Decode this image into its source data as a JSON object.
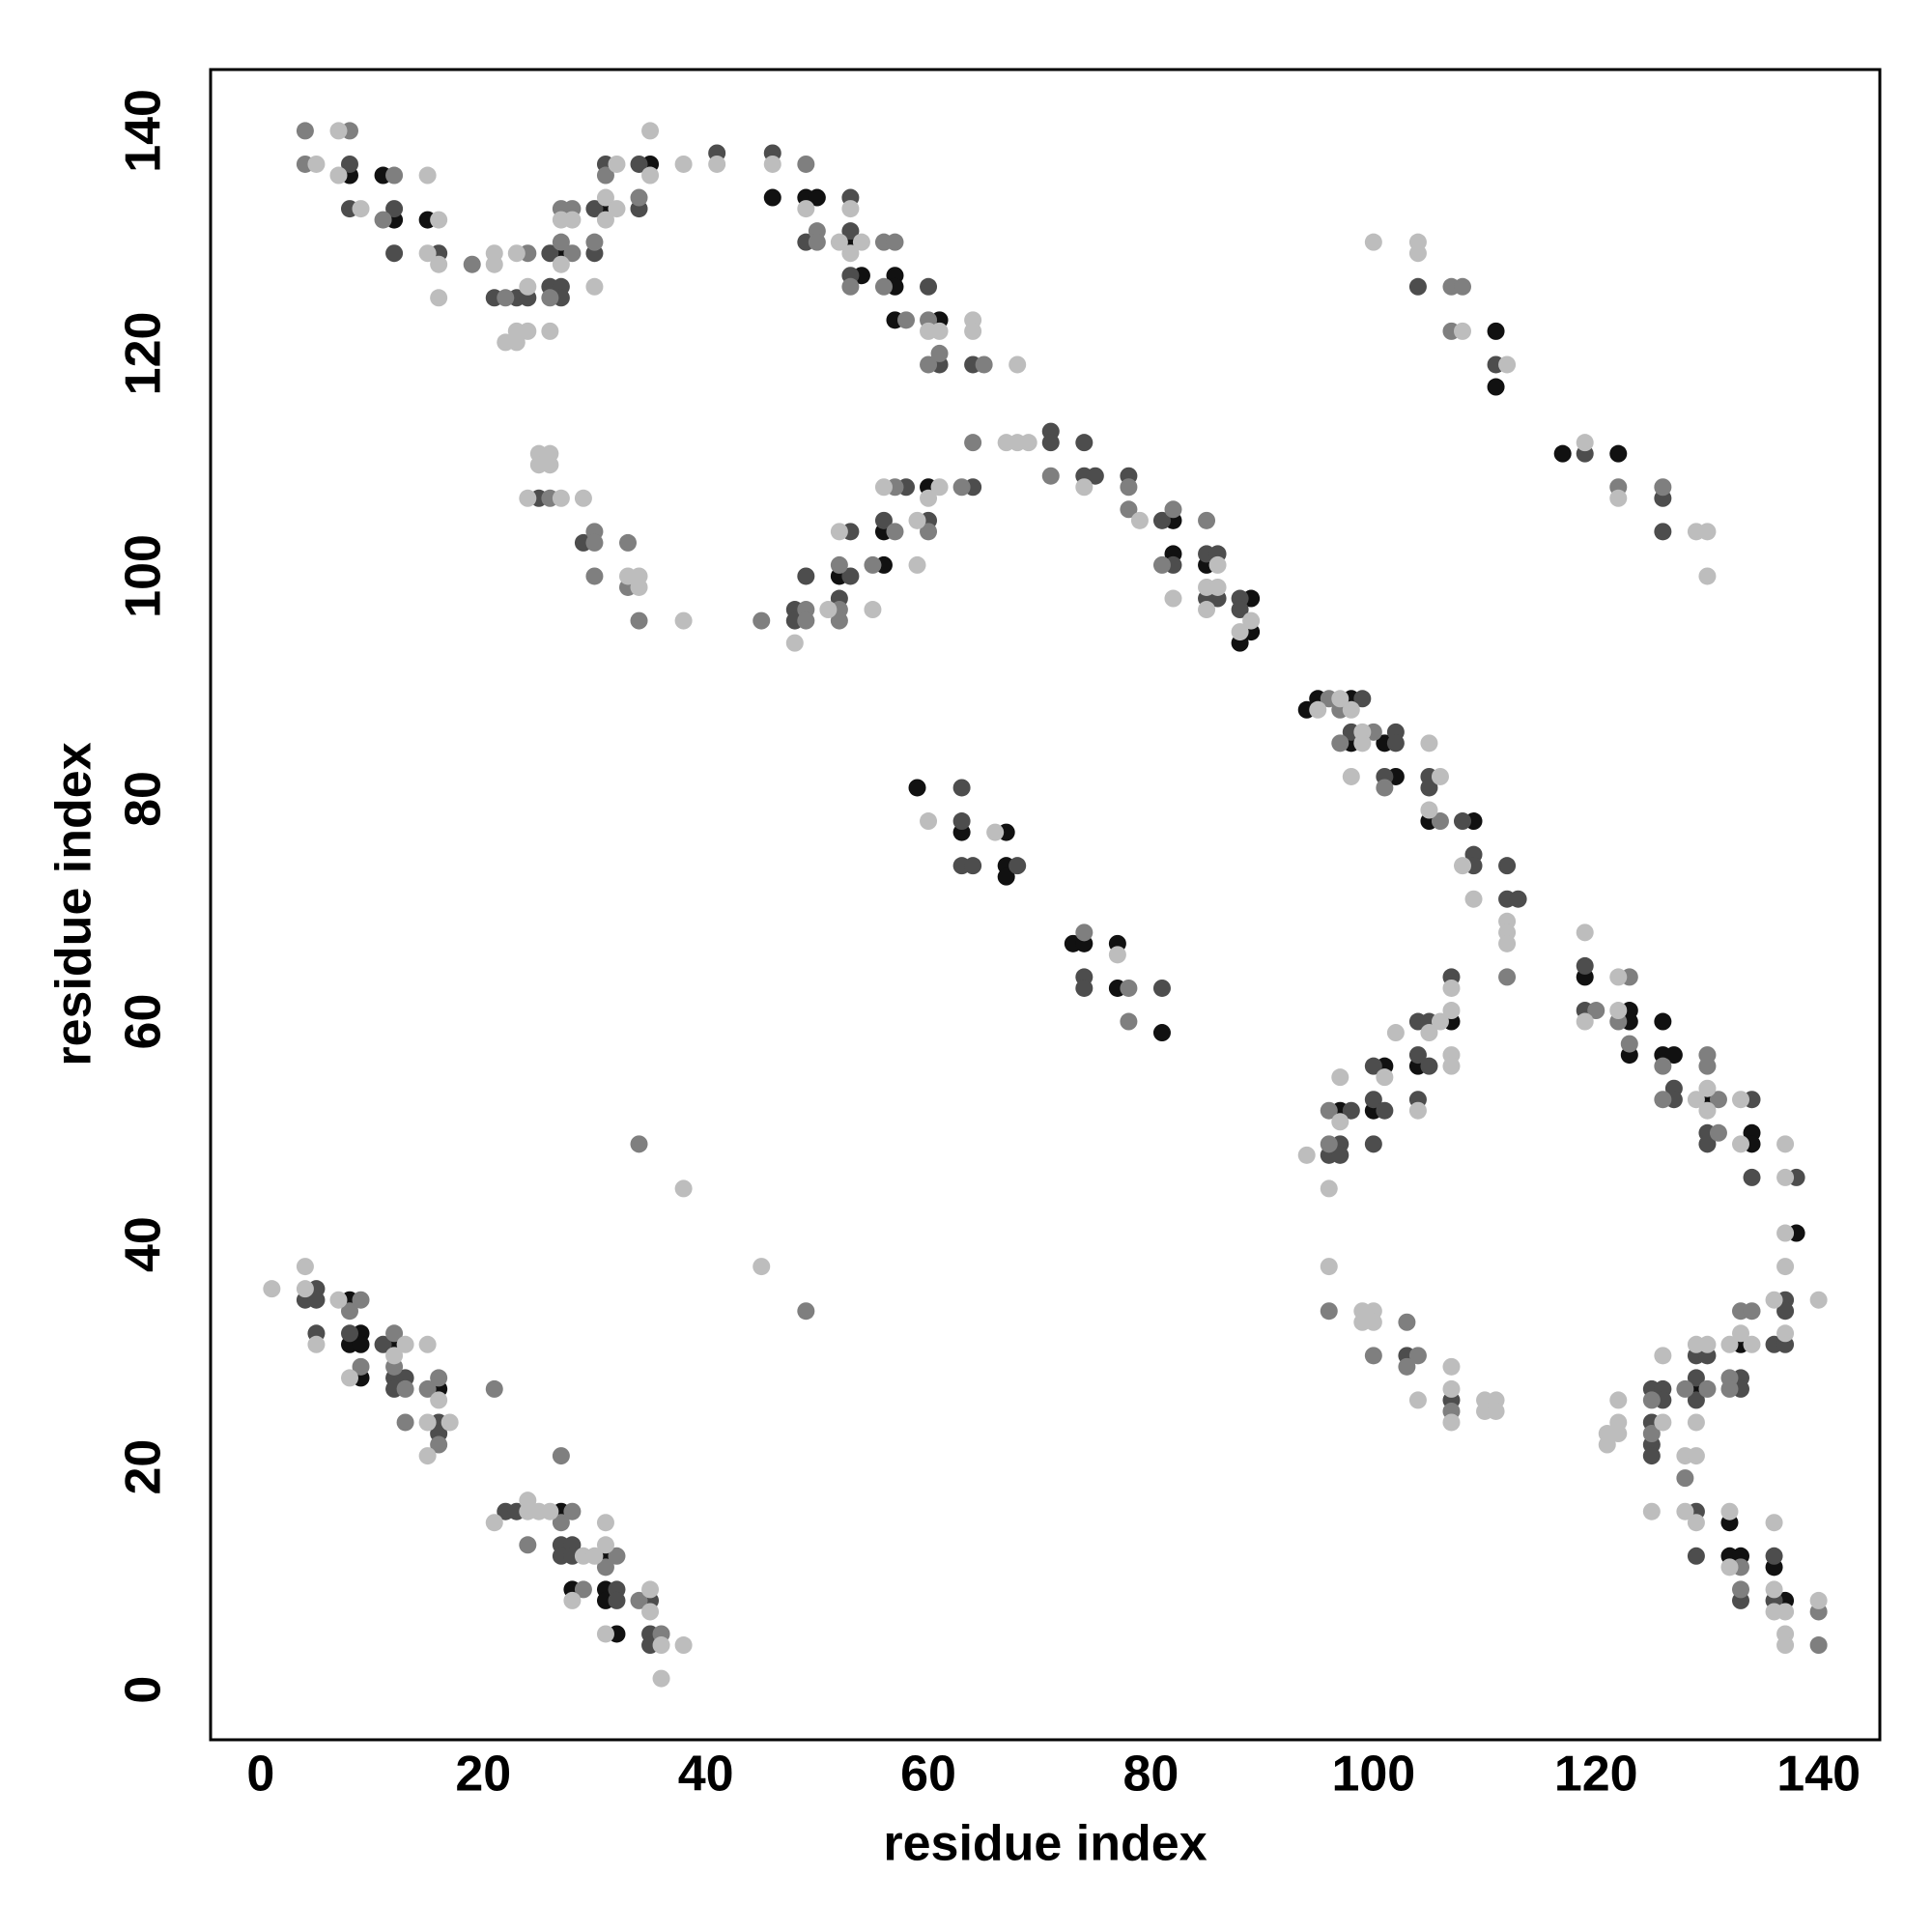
{
  "chart_data": {
    "type": "scatter",
    "xlabel": "residue index",
    "ylabel": "residue index",
    "xlim": [
      -4.5,
      145.5
    ],
    "ylim": [
      -4.5,
      145.5
    ],
    "xticks": [
      0,
      20,
      40,
      60,
      80,
      100,
      120,
      140
    ],
    "yticks": [
      0,
      20,
      40,
      60,
      80,
      100,
      120,
      140
    ],
    "series": [
      {
        "color": "#111111",
        "x": [
          8,
          11,
          12,
          15,
          27,
          31,
          35,
          46,
          49,
          50,
          53,
          54,
          57,
          57,
          57,
          61,
          111,
          111,
          117,
          122,
          52,
          56,
          56,
          60,
          82,
          82,
          85,
          89,
          88,
          89,
          94,
          95,
          98,
          98,
          101,
          102,
          105,
          109,
          59,
          63,
          67,
          67,
          67,
          73,
          74,
          77,
          77,
          81,
          107,
          104,
          101,
          100,
          97,
          119,
          123,
          123,
          123,
          126,
          126,
          127,
          130,
          134,
          134,
          138,
          133,
          129,
          132,
          132,
          133,
          136,
          137,
          8,
          9,
          8,
          9,
          9,
          12,
          16,
          27,
          31,
          28,
          31,
          31,
          32
        ],
        "values": [
          136,
          136,
          132,
          132,
          129,
          133,
          137,
          134,
          134,
          134,
          130,
          127,
          127,
          126,
          123,
          123,
          122,
          117,
          111,
          111,
          100,
          101,
          104,
          108,
          105,
          102,
          101,
          98,
          94,
          95,
          88,
          89,
          89,
          85,
          85,
          82,
          78,
          78,
          81,
          77,
          77,
          74,
          73,
          67,
          67,
          67,
          63,
          59,
          60,
          56,
          56,
          52,
          52,
          64,
          61,
          60,
          57,
          60,
          57,
          57,
          53,
          50,
          49,
          41,
          31,
          27,
          15,
          12,
          12,
          11,
          8,
          35,
          32,
          31,
          31,
          28,
          31,
          27,
          16,
          12,
          9,
          9,
          8,
          5
        ]
      },
      {
        "color": "#4d4d4d",
        "x": [
          8,
          8,
          12,
          12,
          16,
          21,
          23,
          24,
          26,
          26,
          27,
          27,
          30,
          30,
          31,
          34,
          34,
          41,
          46,
          49,
          53,
          53,
          53,
          60,
          61,
          64,
          104,
          111,
          119,
          126,
          126,
          25,
          29,
          48,
          48,
          49,
          52,
          53,
          53,
          56,
          58,
          60,
          64,
          71,
          71,
          74,
          74,
          75,
          78,
          81,
          82,
          85,
          86,
          85,
          86,
          88,
          88,
          99,
          98,
          102,
          102,
          101,
          105,
          105,
          108,
          109,
          109,
          112,
          112,
          113,
          63,
          63,
          63,
          64,
          68,
          74,
          74,
          81,
          107,
          104,
          105,
          104,
          105,
          100,
          100,
          101,
          100,
          104,
          98,
          97,
          96,
          97,
          119,
          119,
          127,
          127,
          130,
          130,
          134,
          134,
          138,
          103,
          107,
          137,
          137,
          136,
          137,
          129,
          130,
          129,
          133,
          133,
          125,
          126,
          126,
          125,
          129,
          125,
          125,
          129,
          129,
          133,
          136,
          136,
          4,
          5,
          5,
          5,
          8,
          11,
          12,
          13,
          12,
          16,
          16,
          22,
          23,
          27,
          28,
          27,
          28,
          32,
          32,
          35,
          35,
          35
        ],
        "values": [
          137,
          133,
          133,
          129,
          129,
          125,
          125,
          125,
          129,
          126,
          126,
          125,
          133,
          129,
          137,
          137,
          133,
          138,
          138,
          130,
          134,
          131,
          127,
          126,
          119,
          119,
          126,
          119,
          111,
          107,
          104,
          107,
          103,
          97,
          96,
          100,
          98,
          100,
          104,
          105,
          108,
          105,
          108,
          113,
          112,
          112,
          109,
          109,
          109,
          105,
          101,
          102,
          102,
          98,
          98,
          98,
          97,
          89,
          86,
          86,
          85,
          82,
          82,
          81,
          78,
          75,
          74,
          74,
          71,
          71,
          81,
          78,
          74,
          74,
          74,
          64,
          63,
          63,
          64,
          60,
          60,
          57,
          56,
          56,
          53,
          52,
          49,
          53,
          52,
          49,
          48,
          48,
          65,
          61,
          54,
          53,
          50,
          49,
          53,
          46,
          46,
          30,
          26,
          35,
          34,
          31,
          31,
          30,
          30,
          28,
          28,
          27,
          27,
          27,
          26,
          24,
          26,
          22,
          21,
          16,
          12,
          8,
          12,
          8,
          35,
          36,
          35,
          32,
          32,
          31,
          28,
          28,
          27,
          24,
          23,
          16,
          16,
          13,
          13,
          12,
          12,
          9,
          8,
          8,
          5,
          4
        ]
      },
      {
        "color": "#7f7f7f",
        "x": [
          4,
          4,
          8,
          12,
          11,
          19,
          22,
          24,
          26,
          27,
          27,
          28,
          28,
          30,
          31,
          34,
          49,
          50,
          50,
          56,
          57,
          56,
          53,
          58,
          60,
          61,
          60,
          65,
          107,
          108,
          107,
          122,
          126,
          26,
          30,
          30,
          30,
          33,
          33,
          34,
          45,
          49,
          49,
          52,
          52,
          52,
          55,
          57,
          57,
          60,
          63,
          64,
          71,
          78,
          78,
          82,
          81,
          85,
          96,
          97,
          97,
          100,
          101,
          106,
          112,
          74,
          78,
          78,
          96,
          96,
          120,
          123,
          122,
          123,
          126,
          126,
          130,
          130,
          131,
          131,
          96,
          103,
          100,
          104,
          103,
          107,
          133,
          134,
          128,
          130,
          132,
          132,
          125,
          125,
          128,
          133,
          133,
          140,
          140,
          8,
          9,
          9,
          12,
          12,
          13,
          13,
          15,
          16,
          16,
          21,
          24,
          27,
          28,
          27,
          32,
          31,
          29,
          34,
          36,
          34,
          49
        ],
        "values": [
          140,
          137,
          140,
          136,
          132,
          128,
          125,
          129,
          125,
          130,
          133,
          133,
          129,
          130,
          136,
          134,
          137,
          131,
          130,
          130,
          130,
          126,
          126,
          123,
          123,
          120,
          119,
          119,
          126,
          126,
          122,
          108,
          108,
          107,
          104,
          103,
          100,
          103,
          99,
          96,
          96,
          97,
          96,
          97,
          96,
          101,
          101,
          104,
          108,
          104,
          108,
          112,
          109,
          108,
          106,
          106,
          101,
          105,
          89,
          88,
          85,
          86,
          81,
          78,
          64,
          68,
          63,
          60,
          52,
          49,
          61,
          64,
          60,
          58,
          56,
          53,
          57,
          56,
          53,
          50,
          34,
          33,
          30,
          30,
          29,
          25,
          34,
          34,
          27,
          27,
          28,
          27,
          26,
          23,
          19,
          11,
          9,
          7,
          4,
          34,
          35,
          29,
          32,
          29,
          27,
          24,
          27,
          28,
          22,
          27,
          13,
          21,
          16,
          15,
          12,
          11,
          9,
          8,
          5,
          49,
          34
        ]
      },
      {
        "color": "#bdbdbd",
        "x": [
          5,
          7,
          7,
          9,
          15,
          16,
          15,
          16,
          16,
          21,
          21,
          23,
          24,
          22,
          23,
          23,
          24,
          26,
          27,
          27,
          28,
          30,
          31,
          31,
          32,
          32,
          35,
          35,
          38,
          41,
          46,
          49,
          52,
          53,
          53,
          54,
          60,
          61,
          64,
          64,
          68,
          100,
          104,
          104,
          108,
          112,
          119,
          122,
          129,
          130,
          130,
          25,
          26,
          25,
          26,
          24,
          27,
          29,
          33,
          34,
          34,
          38,
          48,
          51,
          52,
          55,
          56,
          59,
          59,
          60,
          61,
          67,
          68,
          69,
          74,
          79,
          82,
          86,
          85,
          86,
          85,
          89,
          88,
          95,
          97,
          98,
          99,
          99,
          98,
          105,
          106,
          105,
          108,
          109,
          112,
          112,
          112,
          60,
          66,
          77,
          107,
          107,
          106,
          105,
          107,
          107,
          102,
          101,
          104,
          97,
          97,
          94,
          96,
          119,
          119,
          122,
          122,
          129,
          130,
          130,
          133,
          133,
          137,
          137,
          137,
          96,
          99,
          100,
          99,
          100,
          104,
          107,
          107,
          107,
          110,
          111,
          110,
          111,
          137,
          136,
          137,
          140,
          133,
          134,
          132,
          130,
          129,
          126,
          122,
          126,
          129,
          122,
          122,
          121,
          121,
          128,
          129,
          125,
          128,
          129,
          132,
          132,
          136,
          136,
          136,
          137,
          137,
          137,
          140,
          1,
          4,
          4,
          5,
          7,
          8,
          12,
          13,
          15,
          16,
          15,
          17,
          15,
          21,
          24,
          24,
          25,
          26,
          29,
          30,
          31,
          31,
          28,
          31,
          35,
          35,
          36,
          38,
          36,
          38,
          45
        ],
        "values": [
          137,
          140,
          136,
          133,
          136,
          132,
          129,
          128,
          125,
          129,
          128,
          129,
          126,
          121,
          121,
          122,
          122,
          122,
          128,
          132,
          132,
          126,
          134,
          132,
          137,
          133,
          140,
          136,
          137,
          137,
          137,
          133,
          130,
          133,
          129,
          130,
          122,
          122,
          123,
          122,
          119,
          130,
          130,
          129,
          122,
          119,
          112,
          107,
          104,
          104,
          100,
          111,
          111,
          110,
          110,
          107,
          107,
          107,
          100,
          100,
          99,
          96,
          94,
          97,
          104,
          97,
          108,
          105,
          101,
          107,
          108,
          112,
          112,
          112,
          108,
          105,
          98,
          101,
          99,
          99,
          97,
          96,
          95,
          88,
          89,
          88,
          86,
          85,
          82,
          85,
          82,
          79,
          74,
          71,
          69,
          68,
          67,
          78,
          77,
          66,
          63,
          61,
          60,
          59,
          57,
          56,
          59,
          55,
          52,
          55,
          51,
          48,
          45,
          68,
          60,
          64,
          61,
          53,
          54,
          52,
          53,
          49,
          49,
          46,
          41,
          38,
          34,
          34,
          33,
          33,
          26,
          29,
          27,
          24,
          26,
          26,
          25,
          25,
          38,
          35,
          32,
          35,
          32,
          31,
          31,
          31,
          31,
          30,
          26,
          24,
          24,
          24,
          23,
          23,
          22,
          21,
          21,
          16,
          16,
          15,
          16,
          11,
          15,
          9,
          7,
          7,
          5,
          4,
          8,
          36,
          38,
          36,
          31,
          35,
          28,
          30,
          31,
          31,
          26,
          24,
          24,
          21,
          15,
          17,
          16,
          16,
          16,
          12,
          12,
          15,
          13,
          8,
          5,
          9,
          7,
          4,
          4,
          1,
          45,
          38
        ]
      }
    ]
  }
}
